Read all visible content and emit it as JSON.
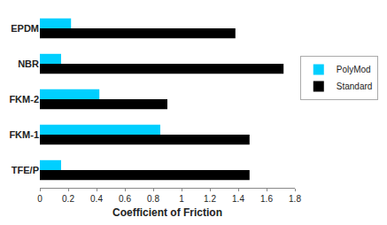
{
  "chart_data": {
    "type": "bar",
    "orientation": "horizontal",
    "categories": [
      "EPDM",
      "NBR",
      "FKM-2",
      "FKM-1",
      "TFE/P"
    ],
    "series": [
      {
        "name": "PolyMod",
        "color": "#00CFFF",
        "values": [
          0.22,
          0.15,
          0.42,
          0.85,
          0.15
        ]
      },
      {
        "name": "Standard",
        "color": "#000000",
        "values": [
          1.38,
          1.72,
          0.9,
          1.48,
          1.48
        ]
      }
    ],
    "xlabel": "Coefficient of Friction",
    "xlim": [
      0,
      1.8
    ],
    "xticks": [
      0,
      0.2,
      0.4,
      0.6,
      0.8,
      1.0,
      1.2,
      1.4,
      1.6,
      1.8
    ],
    "grid": false,
    "legend": "right"
  }
}
